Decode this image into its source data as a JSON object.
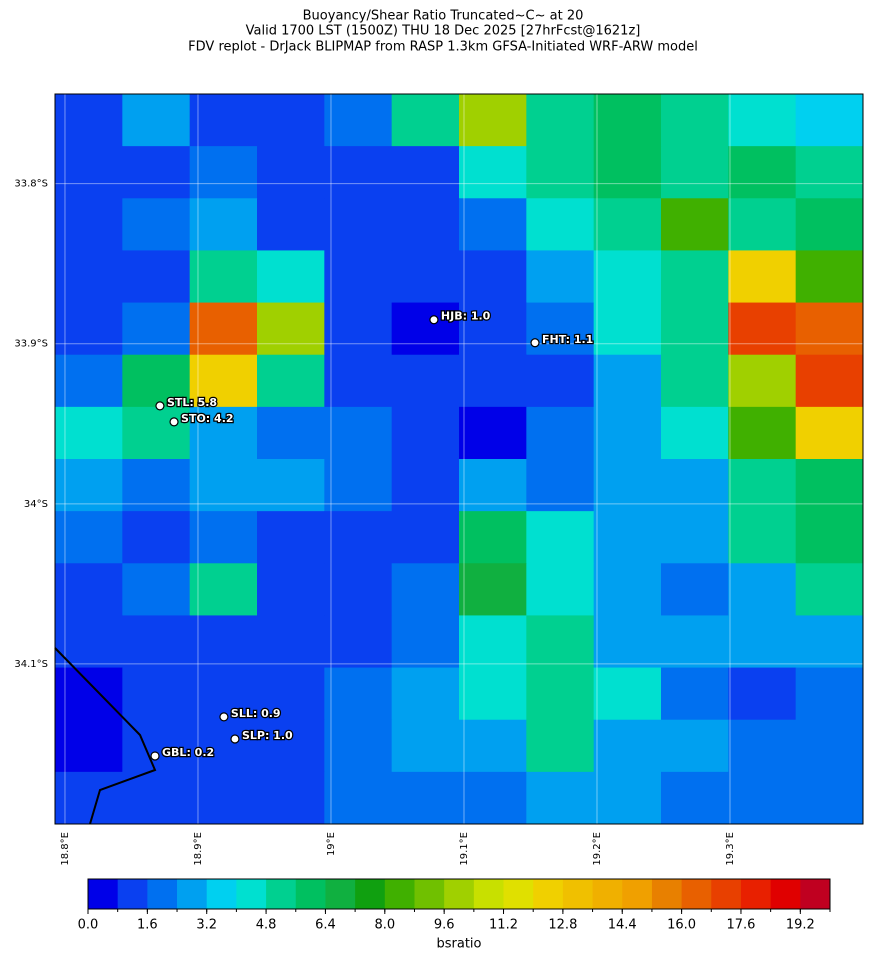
{
  "chart_data": {
    "type": "raster-map",
    "title": [
      "Buoyancy/Shear Ratio Truncated~C~    at 20",
      "Valid 1700 LST (1500Z) THU 18 Dec 2025 [27hrFcst@1621z]",
      "FDV replot - DrJack BLIPMAP from RASP 1.3km GFSA-Initiated WRF-ARW model"
    ],
    "xlim": [
      18.7925,
      19.4
    ],
    "ylim": [
      34.2,
      33.744
    ],
    "xticks": [
      {
        "value": 18.8,
        "label": "18.8°E"
      },
      {
        "value": 18.9,
        "label": "18.9°E"
      },
      {
        "value": 19.0,
        "label": "19°E"
      },
      {
        "value": 19.1,
        "label": "19.1°E"
      },
      {
        "value": 19.2,
        "label": "19.2°E"
      },
      {
        "value": 19.3,
        "label": "19.3°E"
      }
    ],
    "yticks": [
      {
        "value": 33.8,
        "label": "33.8°S"
      },
      {
        "value": 33.9,
        "label": "33.9°S"
      },
      {
        "value": 34.0,
        "label": "34°S"
      },
      {
        "value": 34.1,
        "label": "34.1°S"
      }
    ],
    "grid": [
      [
        1,
        2.5,
        1.5,
        1,
        2,
        5,
        10,
        5,
        6,
        5,
        4,
        3.5
      ],
      [
        1,
        1.5,
        2,
        1,
        1.5,
        1,
        4,
        5,
        6,
        5,
        6,
        5
      ],
      [
        1.5,
        2,
        3,
        1,
        1,
        1,
        2,
        4,
        5,
        8,
        5,
        6
      ],
      [
        1,
        1.5,
        5,
        4,
        1.5,
        1,
        1,
        3,
        4,
        5,
        12,
        8
      ],
      [
        1,
        2,
        16,
        10,
        1,
        0.5,
        1,
        2,
        4,
        5,
        17,
        16
      ],
      [
        2,
        6,
        12,
        5,
        1.5,
        1,
        1,
        1.5,
        3,
        5,
        10,
        17
      ],
      [
        4,
        5,
        3,
        2,
        2,
        1,
        0.5,
        2,
        3,
        4,
        8,
        12
      ],
      [
        3,
        2,
        3,
        3,
        2,
        1.5,
        2.5,
        2,
        2.5,
        3,
        5,
        6
      ],
      [
        2,
        1.5,
        2,
        1,
        1,
        1.5,
        6,
        4,
        3,
        2.5,
        5,
        6
      ],
      [
        1.5,
        2,
        5,
        1,
        1,
        2,
        7,
        4,
        3,
        2,
        3,
        5
      ],
      [
        1,
        1.5,
        1.5,
        1,
        1.5,
        2,
        4,
        5,
        3,
        2.5,
        2.5,
        3
      ],
      [
        0.5,
        1,
        1.5,
        1.5,
        2,
        3,
        4,
        5,
        4,
        2,
        1.5,
        2
      ],
      [
        0.5,
        1,
        1.5,
        1.5,
        2,
        2.5,
        3,
        5,
        3,
        2.5,
        2,
        2
      ],
      [
        1,
        1.5,
        1,
        1.5,
        2,
        2,
        2,
        3,
        3,
        2,
        2,
        2
      ]
    ],
    "stations": [
      {
        "label": "HJB: 1.0",
        "lon": 19.0774,
        "lat": 33.885
      },
      {
        "label": "FHT: 1.1",
        "lon": 19.1534,
        "lat": 33.8994
      },
      {
        "label": "STL: 5.8",
        "lon": 18.8714,
        "lat": 33.9388
      },
      {
        "label": "STO: 4.2",
        "lon": 18.882,
        "lat": 33.9488
      },
      {
        "label": "SLL: 0.9",
        "lon": 18.9195,
        "lat": 34.1331
      },
      {
        "label": "SLP: 1.0",
        "lon": 18.9278,
        "lat": 34.1469
      },
      {
        "label": "GBL: 0.2",
        "lon": 18.8677,
        "lat": 34.1575
      }
    ],
    "colorbar": {
      "label": "bsratio",
      "levels": [
        0,
        0.8,
        1.6,
        2.4,
        3.2,
        4,
        4.8,
        5.6,
        6.4,
        7.2,
        8,
        8.8,
        9.6,
        10.4,
        11.2,
        12,
        12.8,
        13.6,
        14.4,
        15.2,
        16,
        16.8,
        17.6,
        18.4,
        19.2,
        20
      ],
      "colors": [
        "#0000e8",
        "#0a40f0",
        "#0070f0",
        "#00a0f0",
        "#00d0f0",
        "#00e0d0",
        "#00d090",
        "#00c060",
        "#10b040",
        "#10a010",
        "#40b000",
        "#70c000",
        "#a0d000",
        "#c8e000",
        "#e0e000",
        "#f0d000",
        "#f0c000",
        "#f0b000",
        "#f0a000",
        "#e88000",
        "#e86000",
        "#e84000",
        "#e82000",
        "#e00000",
        "#c00020"
      ],
      "ticks": [
        {
          "value": 0,
          "label": "0.0"
        },
        1.6,
        3.2,
        4.8,
        6.4,
        {
          "value": 8,
          "label": "8.0"
        },
        9.6,
        11.2,
        12.8,
        14.4,
        {
          "value": 16,
          "label": "16.0"
        },
        17.6,
        19.2
      ]
    }
  }
}
